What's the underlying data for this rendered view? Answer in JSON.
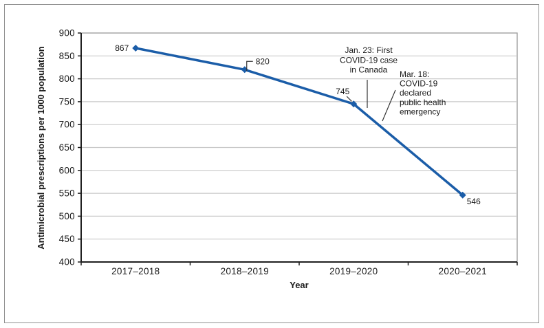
{
  "figure": {
    "xlabel": "Year",
    "ylabel": "Antimicrobial prescriptions per 1000 population"
  },
  "chart_data": {
    "type": "line",
    "title": "",
    "categories": [
      "2017–2018",
      "2018–2019",
      "2019–2020",
      "2020–2021"
    ],
    "values": [
      867,
      820,
      745,
      546
    ],
    "data_labels": [
      "867",
      "820",
      "745",
      "546"
    ],
    "xlabel": "Year",
    "ylabel": "Antimicrobial prescriptions per 1000 population",
    "ylim": [
      400,
      900
    ],
    "yticks": [
      400,
      450,
      500,
      550,
      600,
      650,
      700,
      750,
      800,
      850,
      900
    ],
    "grid": true,
    "legend": "none",
    "marker": "diamond",
    "annotations": [
      {
        "lines": [
          "Jan. 23: First",
          "COVID-19 case",
          "in Canada"
        ]
      },
      {
        "lines": [
          "Mar. 18:",
          "COVID-19",
          "declared",
          "public health",
          "emergency"
        ]
      }
    ],
    "colors": {
      "line": "#1b5da8",
      "grid": "#c9c9c9",
      "axis": "#1f1f1f",
      "frame": "#999999",
      "leader": "#333333",
      "text": "#1a1a1a",
      "figure_border": "#8f8f8f"
    }
  }
}
